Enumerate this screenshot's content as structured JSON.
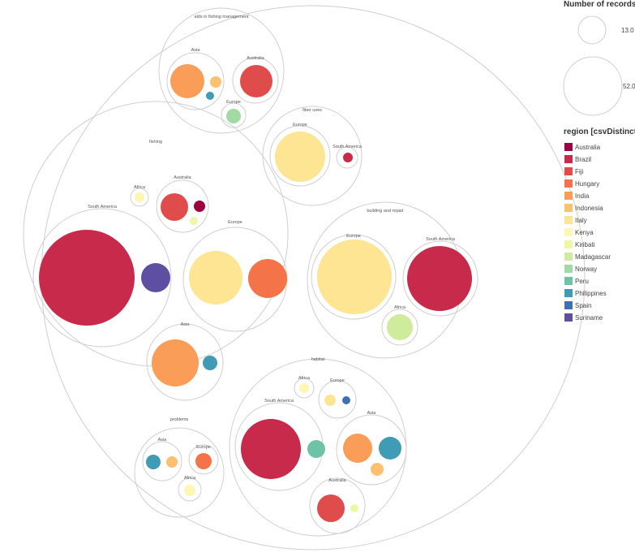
{
  "chart_data": {
    "type": "circle-packing",
    "size_legend": {
      "title": "Number of records",
      "values": [
        "13.0",
        "52.0"
      ]
    },
    "color_legend": {
      "title": "region [csvDistinct]",
      "items": [
        {
          "label": "Australia",
          "color": "#9e0142"
        },
        {
          "label": "Brazil",
          "color": "#c72a4a"
        },
        {
          "label": "Fiji",
          "color": "#e04c4b"
        },
        {
          "label": "Hungary",
          "color": "#f47348"
        },
        {
          "label": "India",
          "color": "#f99d59"
        },
        {
          "label": "Indonesia",
          "color": "#fdc06f"
        },
        {
          "label": "Italy",
          "color": "#fee593"
        },
        {
          "label": "Kenya",
          "color": "#fdf7b3"
        },
        {
          "label": "Kiribati",
          "color": "#eef7a5"
        },
        {
          "label": "Madagascar",
          "color": "#cfeb9c"
        },
        {
          "label": "Norway",
          "color": "#a2d9a4"
        },
        {
          "label": "Peru",
          "color": "#6cc3a5"
        },
        {
          "label": "Philippines",
          "color": "#409bb4"
        },
        {
          "label": "Spain",
          "color": "#3f72b2"
        },
        {
          "label": "Suriname",
          "color": "#5e4fa2"
        }
      ]
    },
    "groups": [
      {
        "name": "aids in fishing management",
        "subgroups": [
          {
            "name": "Asia",
            "leaves": [
              {
                "region": "India"
              },
              {
                "region": "Indonesia"
              },
              {
                "region": "Philippines"
              }
            ]
          },
          {
            "name": "Australia",
            "leaves": [
              {
                "region": "Fiji"
              }
            ]
          },
          {
            "name": "Europe",
            "leaves": [
              {
                "region": "Norway"
              }
            ]
          }
        ]
      },
      {
        "name": "fiber uses",
        "subgroups": [
          {
            "name": "Europe",
            "leaves": [
              {
                "region": "Italy"
              }
            ]
          },
          {
            "name": "South America",
            "leaves": [
              {
                "region": "Brazil"
              }
            ]
          }
        ]
      },
      {
        "name": "fishing",
        "subgroups": [
          {
            "name": "Africa",
            "leaves": [
              {
                "region": "Kenya"
              }
            ]
          },
          {
            "name": "Australia",
            "leaves": [
              {
                "region": "Fiji"
              },
              {
                "region": "Australia"
              },
              {
                "region": "Kiribati"
              }
            ]
          },
          {
            "name": "South America",
            "leaves": [
              {
                "region": "Brazil"
              },
              {
                "region": "Suriname"
              }
            ]
          },
          {
            "name": "Europe",
            "leaves": [
              {
                "region": "Italy"
              },
              {
                "region": "Hungary"
              }
            ]
          },
          {
            "name": "Asia",
            "leaves": [
              {
                "region": "India"
              },
              {
                "region": "Philippines"
              }
            ]
          }
        ]
      },
      {
        "name": "building and repair",
        "subgroups": [
          {
            "name": "Europe",
            "leaves": [
              {
                "region": "Italy"
              }
            ]
          },
          {
            "name": "South America",
            "leaves": [
              {
                "region": "Brazil"
              }
            ]
          },
          {
            "name": "Africa",
            "leaves": [
              {
                "region": "Madagascar"
              }
            ]
          }
        ]
      },
      {
        "name": "habitat",
        "subgroups": [
          {
            "name": "Africa",
            "leaves": [
              {
                "region": "Kenya"
              }
            ]
          },
          {
            "name": "Europe",
            "leaves": [
              {
                "region": "Italy"
              },
              {
                "region": "Spain"
              }
            ]
          },
          {
            "name": "South America",
            "leaves": [
              {
                "region": "Brazil"
              },
              {
                "region": "Peru"
              }
            ]
          },
          {
            "name": "Asia",
            "leaves": [
              {
                "region": "India"
              },
              {
                "region": "Philippines"
              },
              {
                "region": "Indonesia"
              }
            ]
          },
          {
            "name": "Australia",
            "leaves": [
              {
                "region": "Fiji"
              },
              {
                "region": "Kiribati"
              }
            ]
          }
        ]
      },
      {
        "name": "problems",
        "subgroups": [
          {
            "name": "Asia",
            "leaves": [
              {
                "region": "Philippines"
              },
              {
                "region": "Indonesia"
              }
            ]
          },
          {
            "name": "Europe",
            "leaves": [
              {
                "region": "Hungary"
              }
            ]
          },
          {
            "name": "Africa",
            "leaves": [
              {
                "region": "Kenya"
              }
            ]
          }
        ]
      }
    ]
  }
}
